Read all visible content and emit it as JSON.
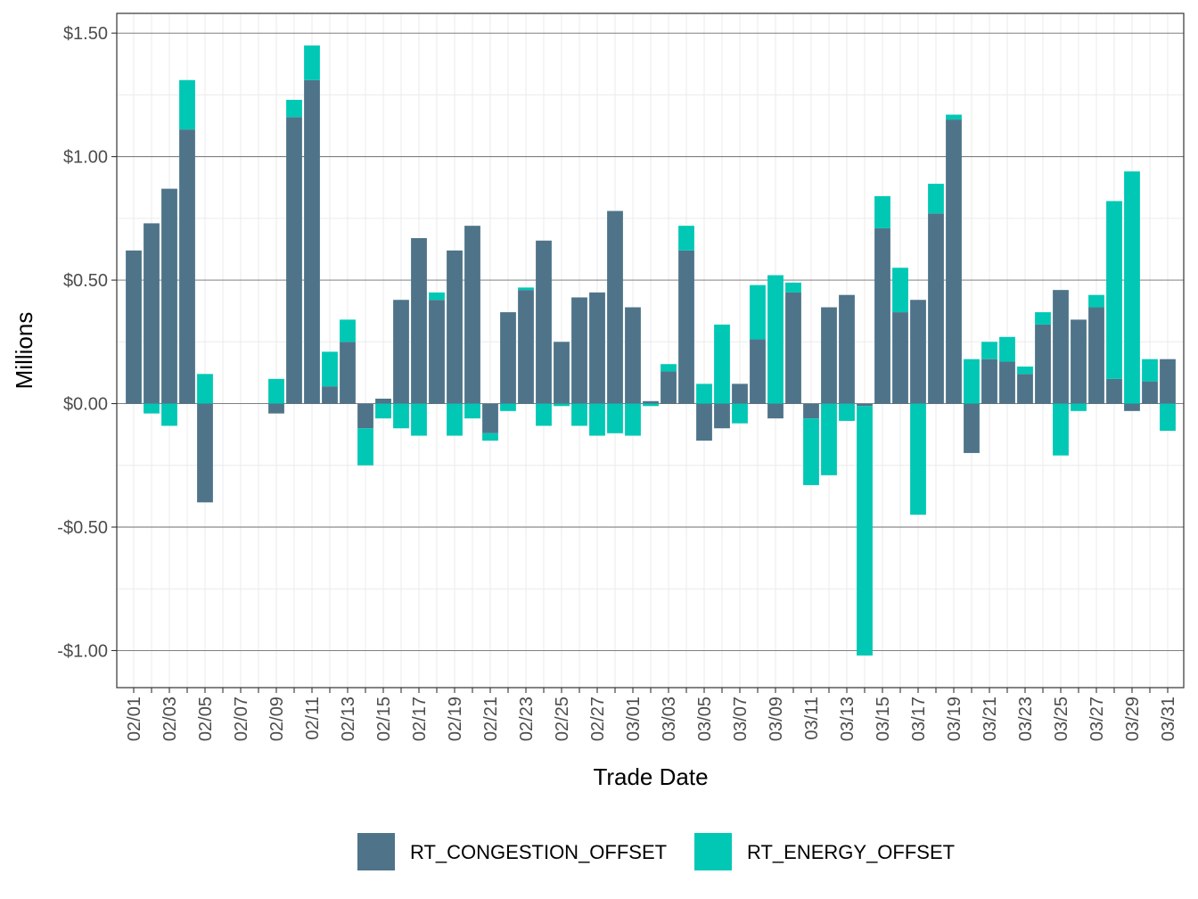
{
  "chart_data": {
    "type": "bar",
    "stacked": true,
    "xlabel": "Trade Date",
    "ylabel": "Millions",
    "ylim": [
      -1.15,
      1.58
    ],
    "y_ticks": [
      -1.0,
      -0.5,
      0.0,
      0.5,
      1.0,
      1.5
    ],
    "y_tick_labels": [
      "-$1.00",
      "-$0.50",
      "$0.00",
      "$0.50",
      "$1.00",
      "$1.50"
    ],
    "grid": true,
    "legend_position": "bottom",
    "categories": [
      "02/01",
      "02/02",
      "02/03",
      "02/04",
      "02/05",
      "02/06",
      "02/07",
      "02/08",
      "02/09",
      "02/10",
      "02/11",
      "02/12",
      "02/13",
      "02/14",
      "02/15",
      "02/16",
      "02/17",
      "02/18",
      "02/19",
      "02/20",
      "02/21",
      "02/22",
      "02/23",
      "02/24",
      "02/25",
      "02/26",
      "02/27",
      "02/28",
      "03/01",
      "03/02",
      "03/03",
      "03/04",
      "03/05",
      "03/06",
      "03/07",
      "03/08",
      "03/09",
      "03/10",
      "03/11",
      "03/12",
      "03/13",
      "03/14",
      "03/15",
      "03/16",
      "03/17",
      "03/18",
      "03/19",
      "03/20",
      "03/21",
      "03/22",
      "03/23",
      "03/24",
      "03/25",
      "03/26",
      "03/27",
      "03/28",
      "03/29",
      "03/30",
      "03/31"
    ],
    "x_tick_labels": [
      "02/01",
      "02/03",
      "02/05",
      "02/07",
      "02/09",
      "02/11",
      "02/13",
      "02/15",
      "02/17",
      "02/19",
      "02/21",
      "02/23",
      "02/25",
      "02/27",
      "03/01",
      "03/03",
      "03/05",
      "03/07",
      "03/09",
      "03/11",
      "03/13",
      "03/15",
      "03/17",
      "03/19",
      "03/21",
      "03/23",
      "03/25",
      "03/27",
      "03/29",
      "03/31"
    ],
    "series": [
      {
        "name": "RT_CONGESTION_OFFSET",
        "color": "#4f7489",
        "values": [
          0.62,
          0.73,
          0.87,
          1.11,
          -0.4,
          0,
          0,
          0,
          -0.04,
          1.16,
          1.31,
          0.07,
          0.25,
          -0.1,
          0.02,
          0.42,
          0.67,
          0.42,
          0.62,
          0.72,
          -0.12,
          0.37,
          0.46,
          0.66,
          0.25,
          0.43,
          0.45,
          0.78,
          0.39,
          0.01,
          0.13,
          0.62,
          -0.15,
          -0.1,
          0.08,
          0.26,
          -0.06,
          0.45,
          -0.06,
          0.39,
          0.44,
          -0.01,
          0.71,
          0.37,
          0.42,
          0.77,
          1.15,
          -0.2,
          0.18,
          0.17,
          0.12,
          0.32,
          0.46,
          0.34,
          0.39,
          0.1,
          -0.03,
          0.09,
          0.18
        ]
      },
      {
        "name": "RT_ENERGY_OFFSET",
        "color": "#00c8b4",
        "values": [
          0,
          -0.04,
          -0.09,
          0.2,
          0.12,
          0,
          0,
          0,
          0.1,
          0.07,
          0.14,
          0.14,
          0.09,
          -0.15,
          -0.06,
          -0.1,
          -0.13,
          0.03,
          -0.13,
          -0.06,
          -0.03,
          -0.03,
          0.01,
          -0.09,
          -0.01,
          -0.09,
          -0.13,
          -0.12,
          -0.13,
          -0.01,
          0.03,
          0.1,
          0.08,
          0.32,
          -0.08,
          0.22,
          0.52,
          0.04,
          -0.27,
          -0.29,
          -0.07,
          -1.01,
          0.13,
          0.18,
          -0.45,
          0.12,
          0.02,
          0.18,
          0.07,
          0.1,
          0.03,
          0.05,
          -0.21,
          -0.03,
          0.05,
          0.72,
          0.94,
          0.09,
          -0.11
        ]
      }
    ]
  }
}
